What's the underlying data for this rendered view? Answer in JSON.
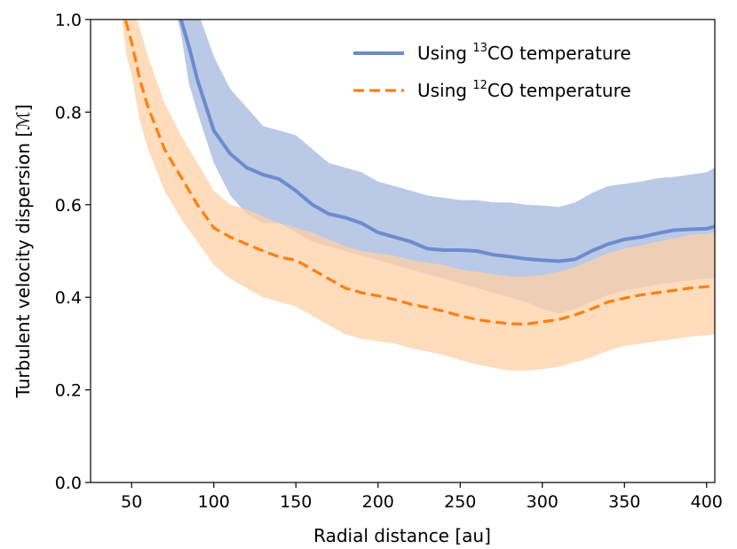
{
  "chart_data": {
    "type": "line",
    "title": "",
    "xlabel": "Radial distance [au]",
    "ylabel": "Turbulent velocity dispersion [ℳ]",
    "xlim": [
      25,
      405
    ],
    "ylim": [
      0.0,
      1.0
    ],
    "xticks": [
      {
        "value": 50,
        "label": "50"
      },
      {
        "value": 100,
        "label": "100"
      },
      {
        "value": 150,
        "label": "150"
      },
      {
        "value": 200,
        "label": "200"
      },
      {
        "value": 250,
        "label": "250"
      },
      {
        "value": 300,
        "label": "300"
      },
      {
        "value": 350,
        "label": "350"
      },
      {
        "value": 400,
        "label": "400"
      }
    ],
    "yticks": [
      {
        "value": 0.0,
        "label": "0.0"
      },
      {
        "value": 0.2,
        "label": "0.2"
      },
      {
        "value": 0.4,
        "label": "0.4"
      },
      {
        "value": 0.6,
        "label": "0.6"
      },
      {
        "value": 0.8,
        "label": "0.8"
      },
      {
        "value": 1.0,
        "label": "1.0"
      }
    ],
    "legend_position": "top-right",
    "series": [
      {
        "name": "Using 13CO temperature",
        "legend": {
          "prefix": "Using ",
          "sup": "13",
          "suffix": "CO temperature"
        },
        "color": "#6b8cce",
        "band_color": "#aebfe2",
        "style": "solid",
        "x": [
          70,
          78,
          80,
          85,
          90,
          100,
          110,
          120,
          130,
          140,
          150,
          160,
          170,
          180,
          190,
          200,
          210,
          220,
          230,
          240,
          250,
          260,
          270,
          280,
          290,
          300,
          310,
          320,
          330,
          340,
          350,
          360,
          370,
          380,
          390,
          400,
          405
        ],
        "y": [
          null,
          1.02,
          1.0,
          0.94,
          0.87,
          0.76,
          0.71,
          0.68,
          0.665,
          0.655,
          0.63,
          0.6,
          0.58,
          0.572,
          0.56,
          0.54,
          0.53,
          0.52,
          0.505,
          0.502,
          0.502,
          0.5,
          0.492,
          0.488,
          0.483,
          0.48,
          0.478,
          0.482,
          0.5,
          0.515,
          0.525,
          0.53,
          0.538,
          0.545,
          0.547,
          0.548,
          0.553
        ],
        "upper": [
          1.02,
          1.02,
          1.02,
          1.02,
          1.02,
          0.92,
          0.85,
          0.81,
          0.77,
          0.76,
          0.75,
          0.72,
          0.69,
          0.68,
          0.67,
          0.65,
          0.64,
          0.63,
          0.62,
          0.615,
          0.61,
          0.61,
          0.605,
          0.605,
          0.6,
          0.598,
          0.595,
          0.605,
          0.625,
          0.64,
          0.645,
          0.65,
          0.657,
          0.66,
          0.665,
          0.67,
          0.68
        ],
        "lower": [
          1.02,
          1.0,
          0.97,
          0.86,
          0.8,
          0.69,
          0.62,
          0.58,
          0.56,
          0.56,
          0.54,
          0.52,
          0.51,
          0.5,
          0.49,
          0.48,
          0.47,
          0.46,
          0.45,
          0.44,
          0.43,
          0.42,
          0.41,
          0.4,
          0.39,
          0.375,
          0.365,
          0.375,
          0.39,
          0.405,
          0.415,
          0.42,
          0.428,
          0.432,
          0.437,
          0.44,
          0.44
        ]
      },
      {
        "name": "Using 12CO temperature",
        "legend": {
          "prefix": "Using ",
          "sup": "12",
          "suffix": "CO temperature"
        },
        "color": "#ff7f0e",
        "band_color": "#ffd0a6",
        "style": "dashed",
        "x": [
          43,
          47,
          50,
          55,
          60,
          70,
          80,
          90,
          100,
          110,
          120,
          130,
          140,
          150,
          160,
          170,
          180,
          190,
          200,
          210,
          220,
          230,
          240,
          250,
          260,
          270,
          280,
          290,
          300,
          310,
          320,
          330,
          340,
          350,
          360,
          370,
          380,
          390,
          400,
          405
        ],
        "y": [
          1.03,
          0.99,
          0.95,
          0.87,
          0.81,
          0.72,
          0.66,
          0.6,
          0.55,
          0.53,
          0.515,
          0.5,
          0.487,
          0.48,
          0.46,
          0.44,
          0.42,
          0.41,
          0.403,
          0.395,
          0.385,
          0.378,
          0.37,
          0.36,
          0.352,
          0.347,
          0.343,
          0.342,
          0.347,
          0.352,
          0.362,
          0.375,
          0.39,
          0.398,
          0.405,
          0.41,
          0.415,
          0.42,
          0.423,
          0.424
        ],
        "upper": [
          1.03,
          1.03,
          1.03,
          0.98,
          0.92,
          0.82,
          0.75,
          0.69,
          0.63,
          0.6,
          0.59,
          0.575,
          0.56,
          0.55,
          0.54,
          0.525,
          0.51,
          0.5,
          0.495,
          0.49,
          0.48,
          0.475,
          0.47,
          0.46,
          0.455,
          0.45,
          0.445,
          0.445,
          0.448,
          0.455,
          0.465,
          0.48,
          0.495,
          0.505,
          0.512,
          0.52,
          0.527,
          0.535,
          0.537,
          0.54
        ],
        "lower": [
          1.03,
          0.92,
          0.88,
          0.78,
          0.72,
          0.63,
          0.57,
          0.52,
          0.47,
          0.44,
          0.42,
          0.4,
          0.39,
          0.38,
          0.36,
          0.34,
          0.32,
          0.31,
          0.305,
          0.3,
          0.29,
          0.283,
          0.275,
          0.265,
          0.255,
          0.248,
          0.242,
          0.242,
          0.245,
          0.25,
          0.26,
          0.27,
          0.285,
          0.295,
          0.3,
          0.305,
          0.31,
          0.315,
          0.318,
          0.32
        ]
      }
    ]
  }
}
